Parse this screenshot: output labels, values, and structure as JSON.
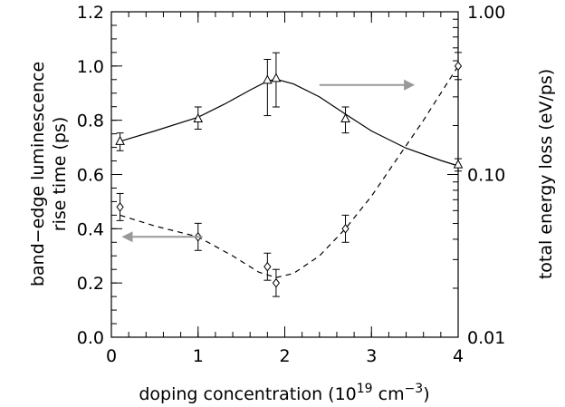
{
  "chart_data": {
    "type": "scatter",
    "xlabel": "doping concentration (10",
    "xlabel_exp1": "19",
    "xlabel_unit": " cm",
    "xlabel_exp2": "−3",
    "xlabel_close": ")",
    "ylabel_left_line1": "band−edge luminescence",
    "ylabel_left_line2": "rise time (ps)",
    "ylabel_right": "total energy loss (eV/ps)",
    "xlim": [
      0,
      4
    ],
    "ylim_left": [
      0,
      1.2
    ],
    "ylim_right": [
      0.01,
      1.0
    ],
    "right_axis_scale": "log",
    "x_ticks": [
      "0",
      "1",
      "2",
      "3",
      "4"
    ],
    "y_left_ticks": [
      "0.0",
      "0.2",
      "0.4",
      "0.6",
      "0.8",
      "1.0",
      "1.2"
    ],
    "y_right_ticks": [
      "0.01",
      "0.10",
      "1.00"
    ],
    "series": [
      {
        "marker": "triangle",
        "line_style": "solid",
        "axis": "right",
        "points": [
          {
            "x": 0.1,
            "y": 0.16,
            "err_low": 0.14,
            "err_high": 0.18
          },
          {
            "x": 1.0,
            "y": 0.22,
            "err_low": 0.19,
            "err_high": 0.26
          },
          {
            "x": 1.8,
            "y": 0.38,
            "err_low": 0.23,
            "err_high": 0.51
          },
          {
            "x": 1.9,
            "y": 0.39,
            "err_low": 0.26,
            "err_high": 0.56
          },
          {
            "x": 2.7,
            "y": 0.22,
            "err_low": 0.18,
            "err_high": 0.26
          },
          {
            "x": 4.0,
            "y": 0.115,
            "err_low": 0.105,
            "err_high": 0.125
          }
        ],
        "curve_x": [
          0.1,
          0.5,
          1.0,
          1.3,
          1.6,
          1.8,
          1.9,
          2.1,
          2.4,
          2.7,
          3.0,
          3.4,
          3.8,
          4.0
        ],
        "curve_y": [
          0.16,
          0.185,
          0.225,
          0.27,
          0.33,
          0.375,
          0.385,
          0.36,
          0.3,
          0.235,
          0.185,
          0.145,
          0.122,
          0.113
        ]
      },
      {
        "marker": "diamond",
        "line_style": "dashed",
        "axis": "left",
        "points": [
          {
            "x": 0.1,
            "y": 0.48,
            "err_low": 0.43,
            "err_high": 0.53
          },
          {
            "x": 1.0,
            "y": 0.37,
            "err_low": 0.32,
            "err_high": 0.42
          },
          {
            "x": 1.8,
            "y": 0.26,
            "err_low": 0.21,
            "err_high": 0.31
          },
          {
            "x": 1.9,
            "y": 0.2,
            "err_low": 0.15,
            "err_high": 0.25
          },
          {
            "x": 2.7,
            "y": 0.4,
            "err_low": 0.35,
            "err_high": 0.45
          },
          {
            "x": 4.0,
            "y": 1.0,
            "err_low": 0.95,
            "err_high": 1.05
          }
        ],
        "curve_x": [
          0.1,
          0.5,
          1.0,
          1.4,
          1.7,
          1.9,
          2.1,
          2.4,
          2.7,
          3.0,
          3.3,
          3.6,
          3.9,
          4.0
        ],
        "curve_y": [
          0.45,
          0.41,
          0.37,
          0.3,
          0.24,
          0.22,
          0.235,
          0.3,
          0.4,
          0.52,
          0.66,
          0.8,
          0.95,
          1.0
        ]
      }
    ],
    "arrows": [
      {
        "direction": "right",
        "points_to_axis": "right",
        "from": [
          2.4,
          0.93
        ],
        "to": [
          3.5,
          0.93
        ]
      },
      {
        "direction": "left",
        "points_to_axis": "left",
        "from": [
          1.05,
          0.37
        ],
        "to": [
          0.12,
          0.37
        ]
      }
    ],
    "colors": {
      "line": "#000000",
      "arrow": "#999999"
    }
  }
}
